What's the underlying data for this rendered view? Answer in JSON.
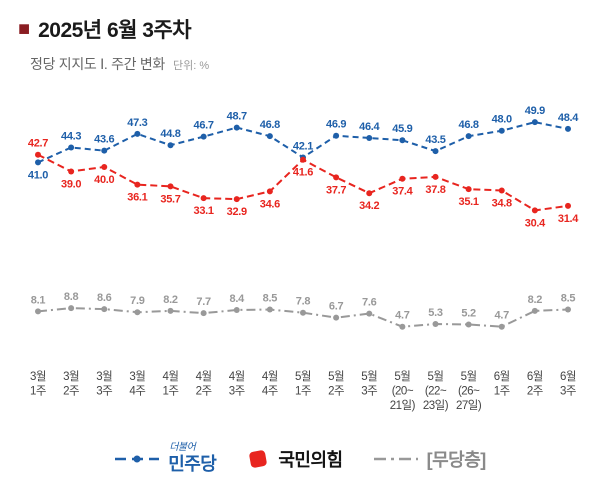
{
  "header": {
    "bullet": "■",
    "bullet_color": "#8a1d22",
    "title": "2025년 6월 3주차",
    "subtitle": "정당 지지도 Ⅰ. 주간 변화",
    "unit_label": "단위: %"
  },
  "chart_data": {
    "type": "line",
    "title": "정당 지지도 주간 변화",
    "unit": "%",
    "ylim": [
      0,
      57
    ],
    "grid": false,
    "legend_position": "bottom",
    "categories": [
      [
        "3월",
        "1주"
      ],
      [
        "3월",
        "2주"
      ],
      [
        "3월",
        "3주"
      ],
      [
        "3월",
        "4주"
      ],
      [
        "4월",
        "1주"
      ],
      [
        "4월",
        "2주"
      ],
      [
        "4월",
        "3주"
      ],
      [
        "4월",
        "4주"
      ],
      [
        "5월",
        "1주"
      ],
      [
        "5월",
        "2주"
      ],
      [
        "5월",
        "3주"
      ],
      [
        "5월",
        "(20~",
        "21일)"
      ],
      [
        "5월",
        "(22~",
        "23일)"
      ],
      [
        "5월",
        "(26~",
        "27일)"
      ],
      [
        "6월",
        "1주"
      ],
      [
        "6월",
        "2주"
      ],
      [
        "6월",
        "3주"
      ]
    ],
    "series": [
      {
        "name": "민주당",
        "color": "#1e5fa9",
        "dash": "6 4",
        "label_side": "above",
        "label_exceptions": {
          "0": "below"
        },
        "values": [
          41.0,
          44.3,
          43.6,
          47.3,
          44.8,
          46.7,
          48.7,
          46.8,
          42.1,
          46.9,
          46.4,
          45.9,
          43.5,
          46.8,
          48.0,
          49.9,
          48.4
        ]
      },
      {
        "name": "국민의힘",
        "color": "#e8251f",
        "dash": "7 4",
        "label_side": "below",
        "label_exceptions": {
          "0": "above"
        },
        "values": [
          42.7,
          39.0,
          40.0,
          36.1,
          35.7,
          33.1,
          32.9,
          34.6,
          41.6,
          37.7,
          34.2,
          37.4,
          37.8,
          35.1,
          34.8,
          30.4,
          31.4
        ]
      },
      {
        "name": "무당층",
        "color": "#999999",
        "dash": "9 4 2 4",
        "label_side": "above",
        "label_exceptions": {},
        "values": [
          8.1,
          8.8,
          8.6,
          7.9,
          8.2,
          7.7,
          8.4,
          8.5,
          7.8,
          6.7,
          7.6,
          4.7,
          5.3,
          5.2,
          4.7,
          8.2,
          8.5
        ]
      }
    ]
  },
  "legend": {
    "minju_script": "더불어",
    "minju_label": "민주당",
    "minju_color": "#1e5fa9",
    "ppp_label": "국민의힘",
    "ppp_color": "#e8251f",
    "mudang_label": "[무당층]",
    "mudang_color": "#8a8a8a"
  }
}
